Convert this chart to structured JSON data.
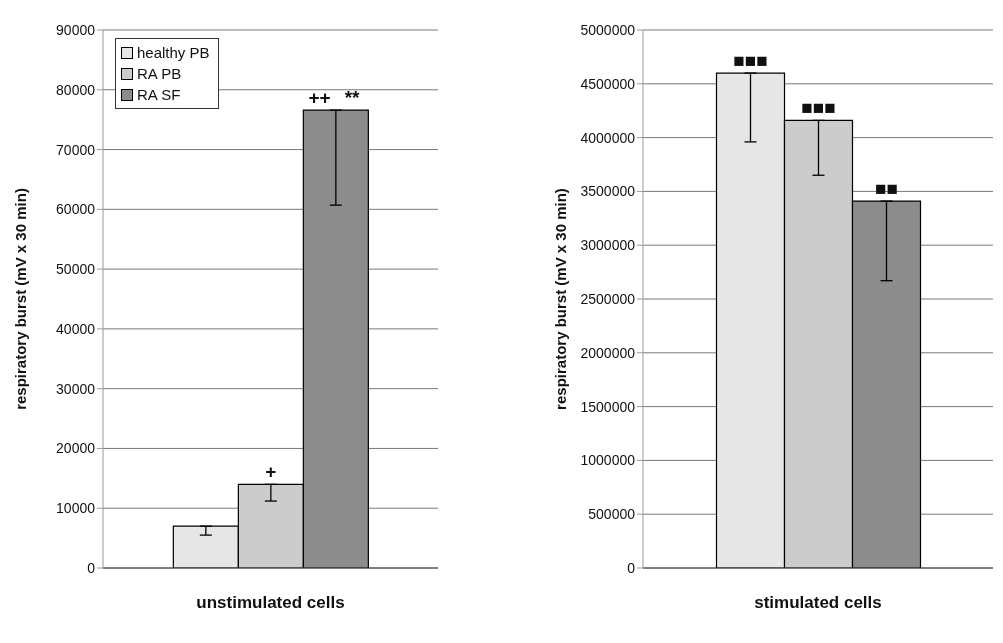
{
  "chart_data": [
    {
      "type": "bar",
      "categories": [
        "unstimulated cells"
      ],
      "ylabel": "respiratory burst (mV x 30 min)",
      "ylim": [
        0,
        90000
      ],
      "yticks": [
        0,
        10000,
        20000,
        30000,
        40000,
        50000,
        60000,
        70000,
        80000,
        90000
      ],
      "grid": "y",
      "legend": "top left",
      "series": [
        {
          "name": "healthy PB",
          "color": "#e6e6e6",
          "values": [
            7000
          ],
          "errors": [
            [
              5500,
              7000
            ]
          ]
        },
        {
          "name": "RA PB",
          "color": "#cccccc",
          "values": [
            14000
          ],
          "errors": [
            [
              11200,
              14000
            ]
          ]
        },
        {
          "name": "RA SF",
          "color": "#8c8c8c",
          "values": [
            76600
          ],
          "errors": [
            [
              60700,
              76600
            ]
          ]
        }
      ],
      "annotations": [
        "+",
        "++",
        "**"
      ]
    },
    {
      "type": "bar",
      "categories": [
        "stimulated cells"
      ],
      "ylabel": "respiratory burst (mV x 30 min)",
      "ylim": [
        0,
        5000000
      ],
      "yticks": [
        0,
        500000,
        1000000,
        1500000,
        2000000,
        2500000,
        3000000,
        3500000,
        4000000,
        4500000,
        5000000
      ],
      "grid": "y",
      "series": [
        {
          "color": "#e6e6e6",
          "values": [
            4600000
          ],
          "errors": [
            [
              3960000,
              4600000
            ]
          ]
        },
        {
          "color": "#cccccc",
          "values": [
            4160000
          ],
          "errors": [
            [
              3650000,
              4160000
            ]
          ]
        },
        {
          "color": "#8c8c8c",
          "values": [
            3410000
          ],
          "errors": [
            [
              2670000,
              3410000
            ]
          ]
        }
      ],
      "annotations": [
        "■■■",
        "■■■",
        "■■"
      ]
    }
  ]
}
